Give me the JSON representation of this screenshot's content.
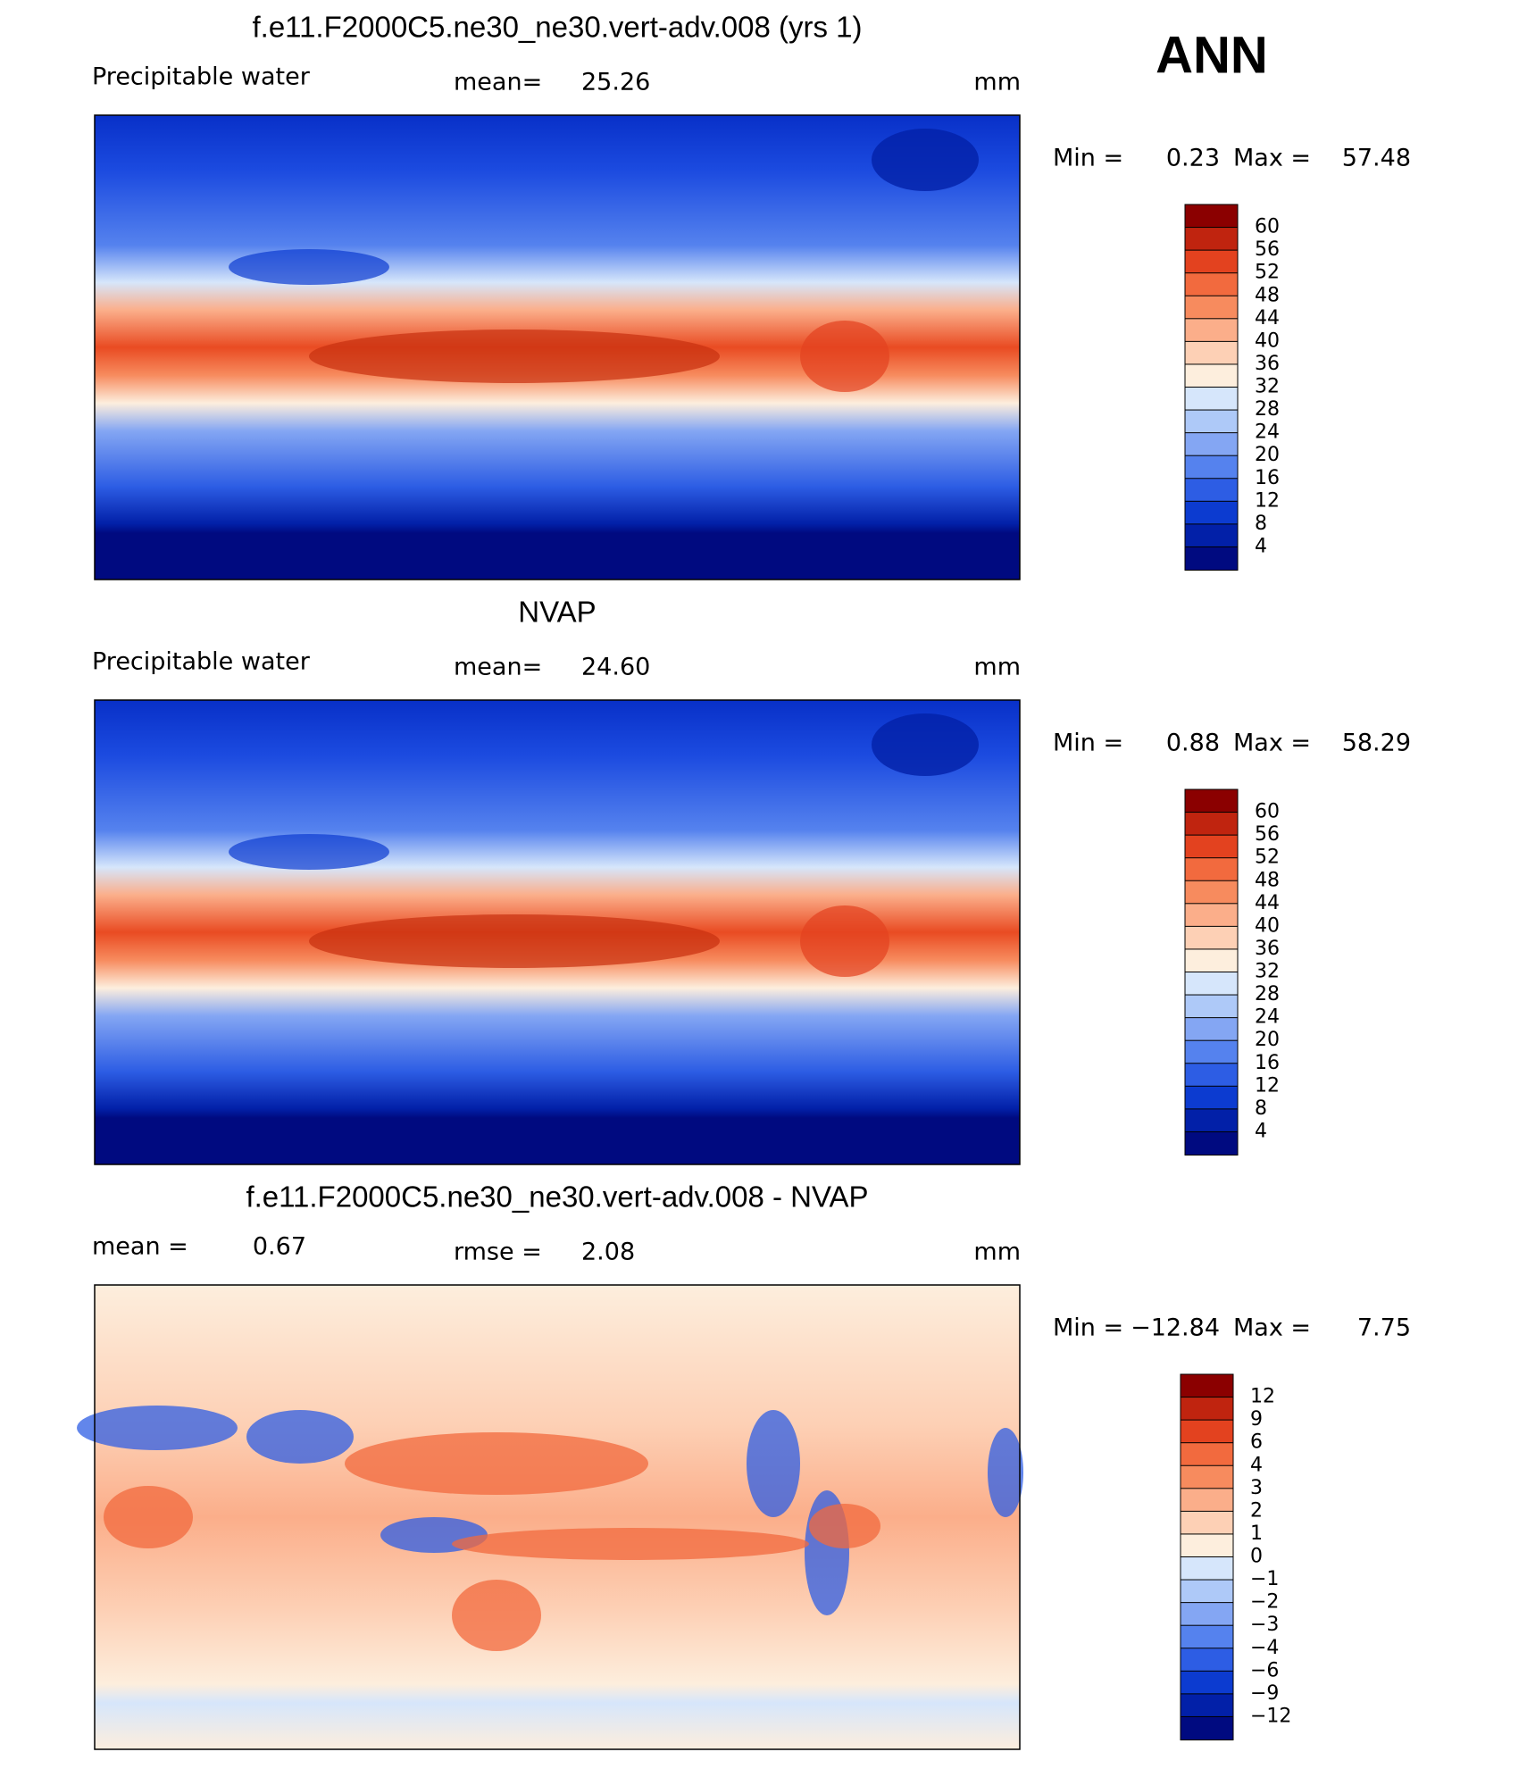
{
  "header": {
    "season": "ANN"
  },
  "panels": [
    {
      "title": "f.e11.F2000C5.ne30_ne30.vert-adv.008 (yrs 1)",
      "left_label": "Precipitable  water",
      "stat1_label": "mean=",
      "stat1": "25.26",
      "units": "mm",
      "min_label": "Min =",
      "min": "0.23",
      "max_label": "Max =",
      "max": "57.48",
      "levels": [
        "60",
        "56",
        "52",
        "48",
        "44",
        "40",
        "36",
        "32",
        "28",
        "24",
        "20",
        "16",
        "12",
        "8",
        "4"
      ],
      "colors": [
        "#8b0000",
        "#c0240f",
        "#e3421f",
        "#f26a3e",
        "#f78b5e",
        "#fbae8a",
        "#fdd0b5",
        "#fdeedd",
        "#d6e6fb",
        "#aec9f8",
        "#84a6f3",
        "#5582ee",
        "#2d5de4",
        "#0c3bd0",
        "#0220a8",
        "#000a80"
      ],
      "map": "moist"
    },
    {
      "title": "NVAP",
      "left_label": "Precipitable  water",
      "stat1_label": "mean=",
      "stat1": "24.60",
      "units": "mm",
      "min_label": "Min =",
      "min": "0.88",
      "max_label": "Max =",
      "max": "58.29",
      "levels": [
        "60",
        "56",
        "52",
        "48",
        "44",
        "40",
        "36",
        "32",
        "28",
        "24",
        "20",
        "16",
        "12",
        "8",
        "4"
      ],
      "colors": [
        "#8b0000",
        "#c0240f",
        "#e3421f",
        "#f26a3e",
        "#f78b5e",
        "#fbae8a",
        "#fdd0b5",
        "#fdeedd",
        "#d6e6fb",
        "#aec9f8",
        "#84a6f3",
        "#5582ee",
        "#2d5de4",
        "#0c3bd0",
        "#0220a8",
        "#000a80"
      ],
      "map": "moist"
    },
    {
      "title": "f.e11.F2000C5.ne30_ne30.vert-adv.008 - NVAP",
      "left_label": "mean =",
      "left_value": "0.67",
      "stat1_label": "rmse =",
      "stat1": "2.08",
      "units": "mm",
      "min_label": "Min =",
      "min": "−12.84",
      "max_label": "Max =",
      "max": "7.75",
      "levels": [
        "12",
        "9",
        "6",
        "4",
        "3",
        "2",
        "1",
        "0",
        "−1",
        "−2",
        "−3",
        "−4",
        "−6",
        "−9",
        "−12"
      ],
      "colors": [
        "#8b0000",
        "#c0240f",
        "#e3421f",
        "#f26a3e",
        "#f78b5e",
        "#fbae8a",
        "#fdd0b5",
        "#fdeedd",
        "#d6e6fb",
        "#aec9f8",
        "#84a6f3",
        "#5582ee",
        "#2d5de4",
        "#0c3bd0",
        "#0220a8",
        "#000a80"
      ],
      "map": "diff"
    }
  ]
}
